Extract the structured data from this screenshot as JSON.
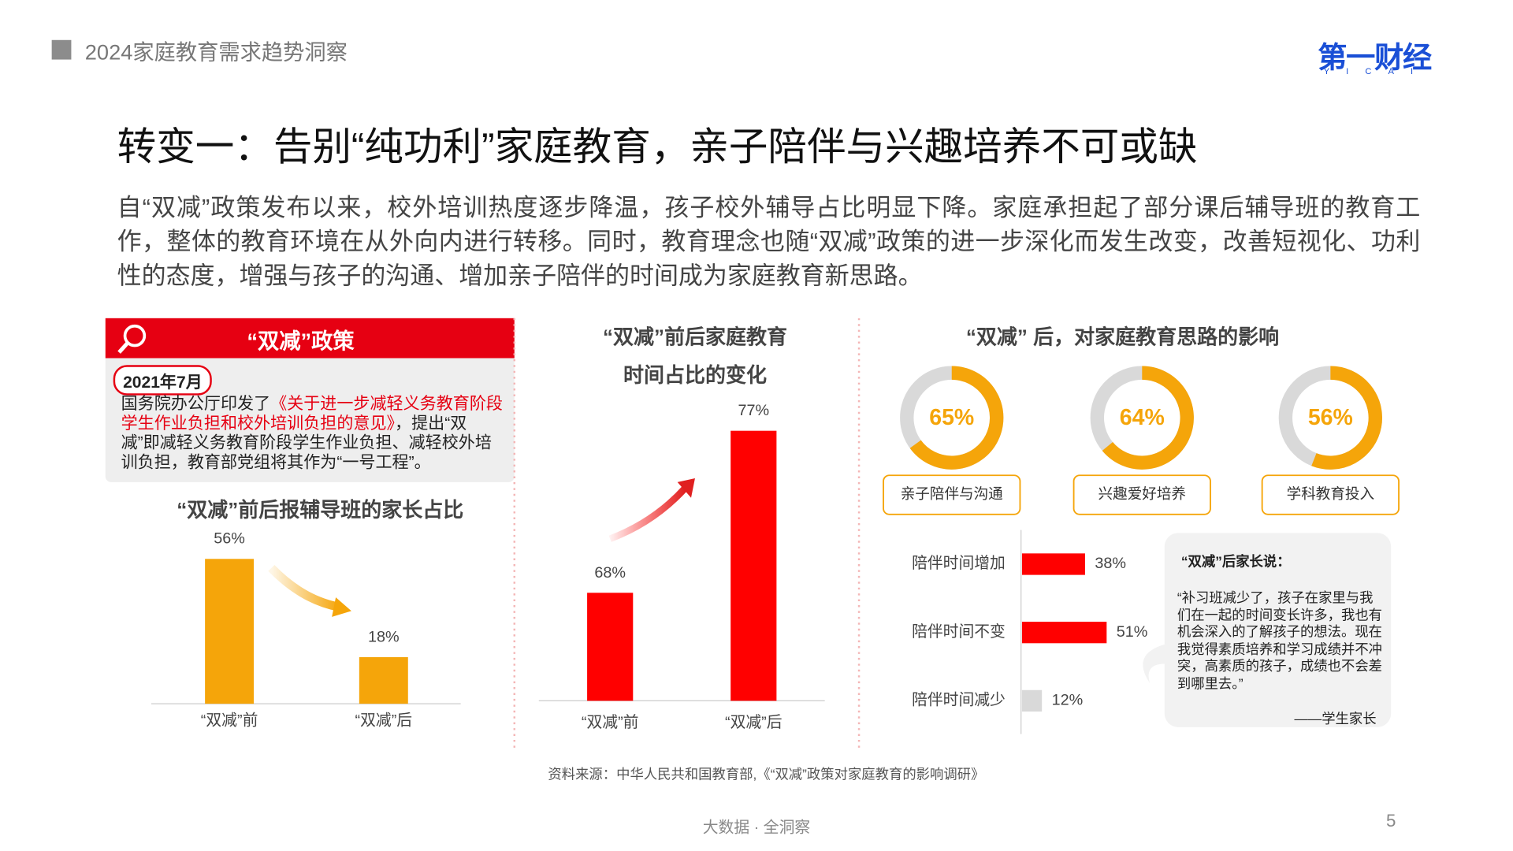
{
  "header": {
    "title": "2024家庭教育需求趋势洞察",
    "logo": "第一财经",
    "logo_sub": "YICAI"
  },
  "title": "转变一：告别“纯功利”家庭教育，亲子陪伴与兴趣培养不可或缺",
  "intro": "自“双减”政策发布以来，校外培训热度逐步降温，孩子校外辅导占比明显下降。家庭承担起了部分课后辅导班的教育工作，整体的教育环境在从外向内进行转移。同时，教育理念也随“双减”政策的进一步深化而发生改变，改善短视化、功利性的态度，增强与孩子的沟通、增加亲子陪伴的时间成为家庭教育新思路。",
  "policy": {
    "heading": "“双减”政策",
    "date": "2021年7月",
    "text": [
      "国务院办公厅印发了",
      "《关于进一步减轻义务教育阶段学生作业负担和校外培训负担的意见》",
      "，提出“双减”即减轻义务教育阶段学生作业负担、减轻校外培训负担，教育部党组将其作为“一号工程”。"
    ]
  },
  "chart_data": [
    {
      "type": "bar",
      "title": "“双减”前后报辅导班的家长占比",
      "categories": [
        "“双减”前",
        "“双减”后"
      ],
      "values": [
        56,
        18
      ],
      "value_labels": [
        "56%",
        "18%"
      ],
      "color": "#f5a50a",
      "ylim": [
        0,
        60
      ]
    },
    {
      "type": "bar",
      "title": [
        "“双减”前后家庭教育",
        "时间占比的变化"
      ],
      "categories": [
        "“双减”前",
        "“双减”后"
      ],
      "values": [
        68,
        77
      ],
      "value_labels": [
        "68%",
        "77%"
      ],
      "color": "#ff0000",
      "ylim": [
        62,
        80
      ]
    },
    {
      "type": "donut",
      "title": "“双减” 后，对家庭教育思路的影响",
      "categories": [
        "亲子陪伴与沟通",
        "兴趣爱好培养",
        "学科教育投入"
      ],
      "values": [
        65,
        64,
        56
      ],
      "value_labels": [
        "65%",
        "64%",
        "56%"
      ],
      "color": "#f5a50a",
      "track_color": "#d9d9d9"
    },
    {
      "type": "hbar",
      "categories": [
        "陪伴时间增加",
        "陪伴时间不变",
        "陪伴时间减少"
      ],
      "values": [
        38,
        51,
        12
      ],
      "value_labels": [
        "38%",
        "51%",
        "12%"
      ],
      "colors": [
        "#ff0000",
        "#ff0000",
        "#d9d9d9"
      ],
      "xlim": [
        0,
        100
      ]
    }
  ],
  "quote": {
    "title": "“双减”后家长说：",
    "text": "“补习班减少了，孩子在家里与我们在一起的时间变长许多，我也有机会深入的了解孩子的想法。现在我觉得素质培养和学习成绩并不冲突，高素质的孩子，成绩也不会差到哪里去。”",
    "author": "——学生家长"
  },
  "source": "资料来源：中华人民共和国教育部,《“双减”政策对家庭教育的影响调研》",
  "footer": {
    "slogan": "大数据 · 全洞察",
    "page": "5"
  }
}
